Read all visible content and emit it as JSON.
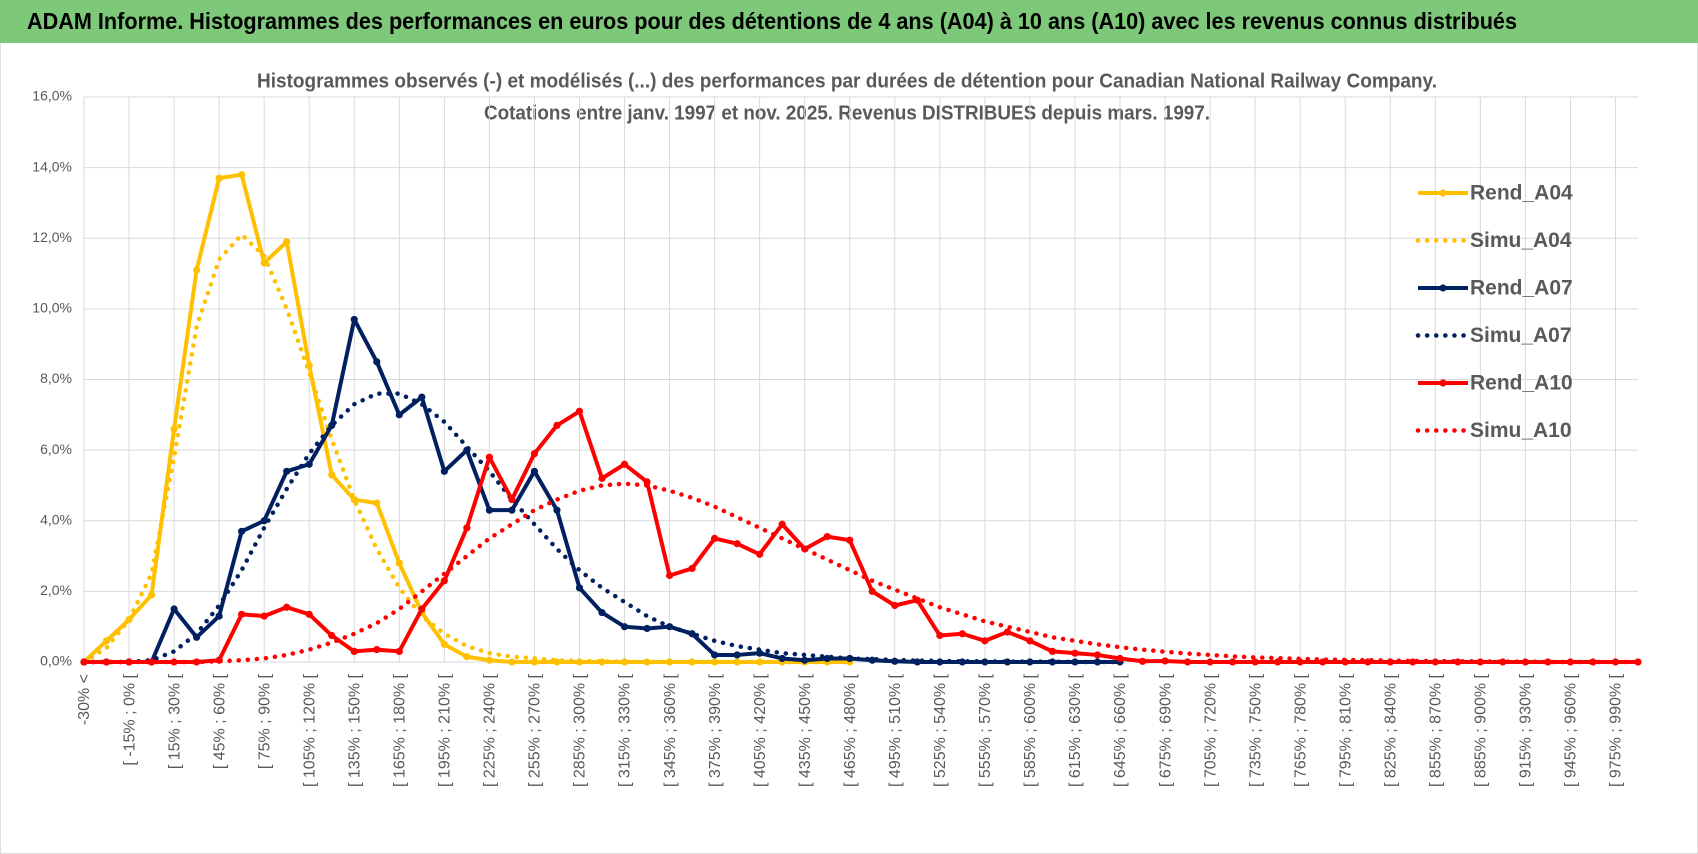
{
  "chart_data": {
    "type": "line",
    "header": "ADAM Informe. Histogrammes des performances en euros pour des détentions de 4 ans (A04) à 10 ans (A10) avec les revenus connus distribués",
    "title": "Histogrammes observés (-) et modélisés (...) des performances par durées de détention pour Canadian National Railway Company.",
    "subtitle": "Cotations entre janv. 1997 et nov. 2025. Revenus DISTRIBUES depuis mars. 1997.",
    "categories": [
      "-30% <",
      null,
      "[ -15% ; 0% [",
      null,
      "[ 15% ; 30% [",
      null,
      "[ 45% ; 60% [",
      null,
      "[ 75% ; 90% [",
      null,
      "[ 105% ; 120% [",
      null,
      "[ 135% ; 150% [",
      null,
      "[ 165% ; 180% [",
      null,
      "[ 195% ; 210% [",
      null,
      "[ 225% ; 240% [",
      null,
      "[ 255% ; 270% [",
      null,
      "[ 285% ; 300% [",
      null,
      "[ 315% ; 330% [",
      null,
      "[ 345% ; 360% [",
      null,
      "[ 375% ; 390% [",
      null,
      "[ 405% ; 420% [",
      null,
      "[ 435% ; 450% [",
      null,
      "[ 465% ; 480% [",
      null,
      "[ 495% ; 510% [",
      null,
      "[ 525% ; 540% [",
      null,
      "[ 555% ; 570% [",
      null,
      "[ 585% ; 600% [",
      null,
      "[ 615% ; 630% [",
      null,
      "[ 645% ; 660% [",
      null,
      "[ 675% ; 690% [",
      null,
      "[ 705% ; 720% [",
      null,
      "[ 735% ; 750% [",
      null,
      "[ 765% ; 780% [",
      null,
      "[ 795% ; 810% [",
      null,
      "[ 825% ; 840% [",
      null,
      "[ 855% ; 870% [",
      null,
      "[ 885% ; 900% [",
      null,
      "[ 915% ; 930% [",
      null,
      "[ 945% ; 960% [",
      null,
      "[ 975% ; 990% [",
      null
    ],
    "ylim": [
      0,
      16
    ],
    "yticks": [
      {
        "value": 0,
        "label": "0,0%"
      },
      {
        "value": 2,
        "label": "2,0%"
      },
      {
        "value": 4,
        "label": "4,0%"
      },
      {
        "value": 6,
        "label": "6,0%"
      },
      {
        "value": 8,
        "label": "8,0%"
      },
      {
        "value": 10,
        "label": "10,0%"
      },
      {
        "value": 12,
        "label": "12,0%"
      },
      {
        "value": 14,
        "label": "14,0%"
      },
      {
        "value": 16,
        "label": "16,0%"
      }
    ],
    "grid": true,
    "legend": "right",
    "series": [
      {
        "name": "Rend_A04",
        "color": "#ffc000",
        "style": "solid",
        "markers": true,
        "values": [
          0,
          0.6,
          1.2,
          1.9,
          6.6,
          11.1,
          13.7,
          13.8,
          11.3,
          11.9,
          8.4,
          5.3,
          4.6,
          4.5,
          2.8,
          1.4,
          0.5,
          0.15,
          0.05,
          0,
          0,
          0,
          0,
          0,
          0,
          0,
          0,
          0,
          0,
          0,
          0,
          0,
          0,
          0,
          0,
          null,
          null,
          null,
          null,
          null,
          null,
          null,
          null,
          null,
          null,
          null,
          null,
          null,
          null,
          null,
          null,
          null,
          null,
          null,
          null,
          null,
          null,
          null,
          null,
          null,
          null,
          null,
          null,
          null,
          null,
          null,
          null,
          null,
          null,
          null
        ]
      },
      {
        "name": "Simu_A04",
        "color": "#ffc000",
        "style": "dotted",
        "markers": false,
        "values": [
          0,
          0.4,
          1.2,
          2.5,
          5.8,
          9.5,
          11.4,
          12.1,
          11.5,
          10.0,
          8.2,
          6.3,
          4.6,
          3.2,
          2.1,
          1.3,
          0.8,
          0.45,
          0.25,
          0.15,
          0.1,
          0.05,
          0.03,
          0.02,
          0.01,
          0,
          0,
          0,
          0,
          0,
          0,
          0,
          0,
          0,
          0,
          null,
          null,
          null,
          null,
          null,
          null,
          null,
          null,
          null,
          null,
          null,
          null,
          null,
          null,
          null,
          null,
          null,
          null,
          null,
          null,
          null,
          null,
          null,
          null,
          null,
          null,
          null,
          null,
          null,
          null,
          null,
          null,
          null,
          null,
          null
        ]
      },
      {
        "name": "Rend_A07",
        "color": "#002060",
        "style": "solid",
        "markers": true,
        "values": [
          0,
          0,
          0,
          0,
          1.5,
          0.7,
          1.3,
          3.7,
          4.0,
          5.4,
          5.6,
          6.7,
          9.7,
          8.5,
          7.0,
          7.5,
          5.4,
          6.0,
          4.3,
          4.3,
          5.4,
          4.3,
          2.1,
          1.4,
          1.0,
          0.95,
          1.0,
          0.8,
          0.2,
          0.2,
          0.25,
          0.1,
          0.05,
          0.1,
          0.1,
          0.05,
          0.02,
          0,
          0,
          0,
          0,
          0,
          0,
          0,
          0,
          0,
          0,
          null,
          null,
          null,
          null,
          null,
          null,
          null,
          null,
          null,
          null,
          null,
          null,
          null,
          null,
          null,
          null,
          null,
          null,
          null,
          null,
          null,
          null,
          null
        ]
      },
      {
        "name": "Simu_A07",
        "color": "#002060",
        "style": "dotted",
        "markers": false,
        "values": [
          0,
          0,
          0,
          0.05,
          0.3,
          0.8,
          1.6,
          2.6,
          3.8,
          4.9,
          5.9,
          6.7,
          7.3,
          7.6,
          7.6,
          7.3,
          6.8,
          6.1,
          5.4,
          4.6,
          3.9,
          3.2,
          2.6,
          2.1,
          1.7,
          1.3,
          1.0,
          0.8,
          0.6,
          0.45,
          0.35,
          0.25,
          0.2,
          0.15,
          0.1,
          0.08,
          0.06,
          0.04,
          0.03,
          0.02,
          0.02,
          0.01,
          0.01,
          0.01,
          0,
          0,
          0,
          null,
          null,
          null,
          null,
          null,
          null,
          null,
          null,
          null,
          null,
          null,
          null,
          null,
          null,
          null,
          null,
          null,
          null,
          null,
          null,
          null,
          null,
          null
        ]
      },
      {
        "name": "Rend_A10",
        "color": "#ff0000",
        "style": "solid",
        "markers": true,
        "values": [
          0,
          0,
          0,
          0,
          0,
          0,
          0.05,
          1.35,
          1.3,
          1.55,
          1.35,
          0.75,
          0.3,
          0.35,
          0.3,
          1.5,
          2.3,
          3.8,
          5.8,
          4.6,
          5.9,
          6.7,
          7.1,
          5.2,
          5.6,
          5.1,
          2.45,
          2.65,
          3.5,
          3.35,
          3.05,
          3.9,
          3.2,
          3.55,
          3.45,
          2.0,
          1.6,
          1.75,
          0.75,
          0.8,
          0.6,
          0.85,
          0.6,
          0.3,
          0.25,
          0.2,
          0.1,
          0.02,
          0.03,
          0,
          0,
          0,
          0,
          0,
          0,
          0,
          0,
          0,
          0,
          0,
          0,
          0,
          0,
          0,
          0,
          0,
          0,
          0,
          0,
          0
        ]
      },
      {
        "name": "Simu_A10",
        "color": "#ff0000",
        "style": "dotted",
        "markers": false,
        "values": [
          0,
          0,
          0,
          0,
          0,
          0,
          0.02,
          0.05,
          0.1,
          0.2,
          0.35,
          0.55,
          0.8,
          1.1,
          1.5,
          2.0,
          2.5,
          3.0,
          3.5,
          3.9,
          4.3,
          4.6,
          4.85,
          5.0,
          5.05,
          5.0,
          4.85,
          4.65,
          4.4,
          4.1,
          3.8,
          3.5,
          3.2,
          2.9,
          2.6,
          2.3,
          2.05,
          1.8,
          1.55,
          1.35,
          1.15,
          1.0,
          0.85,
          0.7,
          0.6,
          0.5,
          0.42,
          0.35,
          0.29,
          0.24,
          0.2,
          0.16,
          0.13,
          0.11,
          0.09,
          0.07,
          0.06,
          0.05,
          0.04,
          0.03,
          0.03,
          0.02,
          0.02,
          0.01,
          0.01,
          0,
          0,
          0,
          0,
          0
        ]
      }
    ]
  }
}
